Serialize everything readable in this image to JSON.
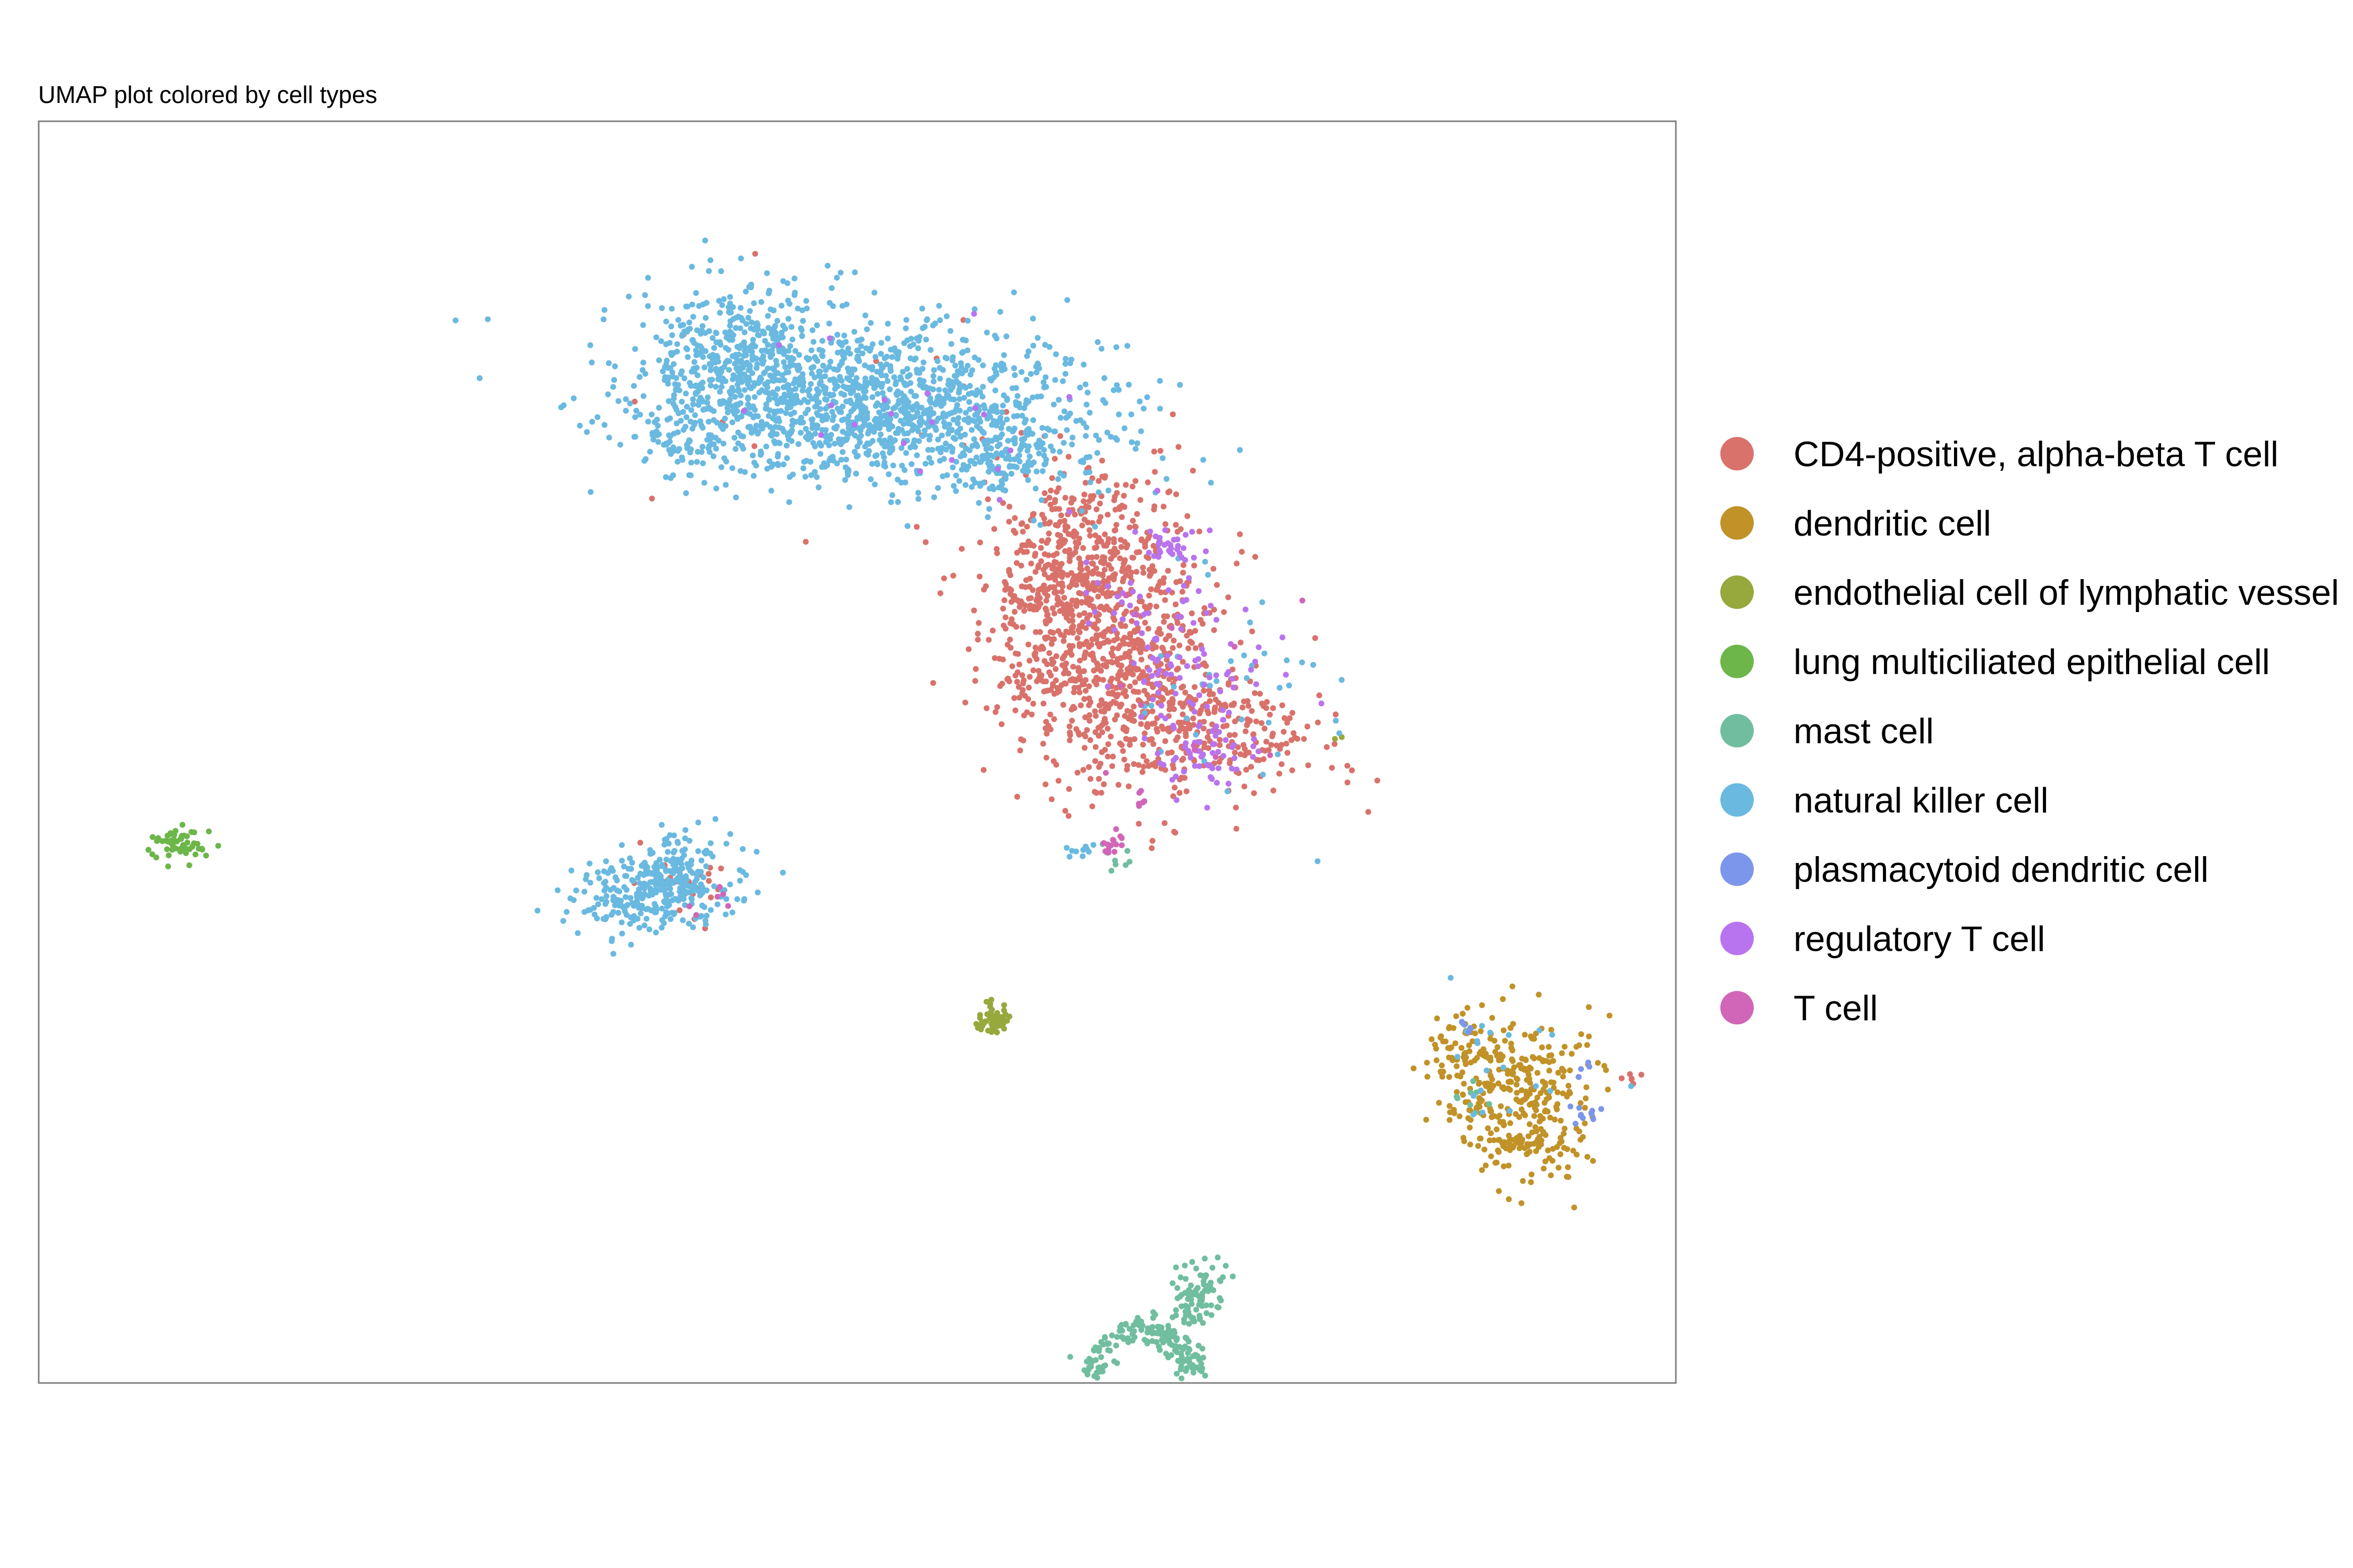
{
  "chart_data": {
    "type": "scatter",
    "title": "UMAP plot colored by cell types",
    "xlabel": "",
    "ylabel": "",
    "grid": false,
    "axes_ticks": false,
    "legend_position": "right",
    "xlim": [
      0,
      1085
    ],
    "ylim": [
      0,
      837
    ],
    "series": [
      {
        "name": "CD4-positive, alpha-beta T cell",
        "color": "#D9726B",
        "clusters": [
          {
            "center": [
              705,
              340
            ],
            "spread": [
              38,
              52
            ],
            "count": 950,
            "angle": -0.35,
            "shape": "gauss"
          },
          {
            "center": [
              690,
              292
            ],
            "spread": [
              22,
              30
            ],
            "count": 180,
            "angle": 0,
            "shape": "gauss"
          },
          {
            "center": [
              770,
              400
            ],
            "spread": [
              40,
              18
            ],
            "count": 260,
            "angle": 0.15,
            "shape": "gauss"
          },
          {
            "center": [
              430,
              508
            ],
            "spread": [
              12,
              10
            ],
            "count": 25,
            "angle": 0,
            "shape": "gauss"
          },
          {
            "center": [
              550,
              190
            ],
            "spread": [
              90,
              40
            ],
            "count": 14,
            "angle": 0,
            "shape": "gauss"
          },
          {
            "center": [
              1057,
              634
            ],
            "spread": [
              5,
              2
            ],
            "count": 6,
            "angle": 0,
            "shape": "gauss"
          }
        ]
      },
      {
        "name": "dendritic cell",
        "color": "#C19228",
        "clusters": [
          {
            "center": [
              958,
              628
            ],
            "spread": [
              20,
              18
            ],
            "count": 160,
            "angle": 0,
            "shape": "gauss"
          },
          {
            "center": [
              990,
              652
            ],
            "spread": [
              22,
              28
            ],
            "count": 200,
            "angle": 0.2,
            "shape": "gauss"
          },
          {
            "center": [
              985,
              680
            ],
            "spread": [
              16,
              7
            ],
            "count": 50,
            "angle": 0,
            "shape": "gauss"
          }
        ]
      },
      {
        "name": "endothelial cell of lymphatic vessel",
        "color": "#97A83D",
        "clusters": [
          {
            "center": [
              633,
              596
            ],
            "spread": [
              6,
              5
            ],
            "count": 55,
            "angle": -0.7,
            "shape": "gauss"
          },
          {
            "center": [
              862,
              408
            ],
            "spread": [
              2,
              1
            ],
            "count": 2,
            "angle": 0,
            "shape": "gauss"
          }
        ]
      },
      {
        "name": "lung multiciliated epithelial cell",
        "color": "#6CB64A",
        "clusters": [
          {
            "center": [
              93,
              481
            ],
            "spread": [
              9,
              6
            ],
            "count": 60,
            "angle": 0,
            "shape": "gauss"
          }
        ]
      },
      {
        "name": "mast cell",
        "color": "#70BE9F",
        "clusters": [
          {
            "center": [
              730,
              832
            ],
            "spread": [
              38,
              32
            ],
            "count": 320,
            "angle": -0.5,
            "shape": "ring"
          },
          {
            "center": [
              690,
              868
            ],
            "spread": [
              34,
              5
            ],
            "count": 140,
            "angle": 0,
            "shape": "gauss"
          },
          {
            "center": [
              768,
              780
            ],
            "spread": [
              8,
              14
            ],
            "count": 90,
            "angle": 0.4,
            "shape": "gauss"
          },
          {
            "center": [
              718,
              491
            ],
            "spread": [
              7,
              5
            ],
            "count": 8,
            "angle": 0,
            "shape": "gauss"
          },
          {
            "center": [
              950,
              650
            ],
            "spread": [
              6,
              10
            ],
            "count": 8,
            "angle": 0,
            "shape": "gauss"
          }
        ]
      },
      {
        "name": "natural killer cell",
        "color": "#6AB9E0",
        "clusters": [
          {
            "center": [
              545,
              185
            ],
            "spread": [
              75,
              28
            ],
            "count": 1400,
            "angle": 0.12,
            "shape": "gauss"
          },
          {
            "center": [
              460,
              160
            ],
            "spread": [
              30,
              30
            ],
            "count": 300,
            "angle": 0,
            "shape": "gauss"
          },
          {
            "center": [
              425,
              215
            ],
            "spread": [
              10,
              10
            ],
            "count": 40,
            "angle": 0,
            "shape": "gauss"
          },
          {
            "center": [
              640,
              215
            ],
            "spread": [
              20,
              14
            ],
            "count": 120,
            "angle": 0,
            "shape": "gauss"
          },
          {
            "center": [
              408,
              512
            ],
            "spread": [
              28,
              12
            ],
            "count": 300,
            "angle": -0.15,
            "shape": "gauss"
          },
          {
            "center": [
              420,
              490
            ],
            "spread": [
              16,
              8
            ],
            "count": 60,
            "angle": -0.5,
            "shape": "gauss"
          },
          {
            "center": [
              690,
              484
            ],
            "spread": [
              6,
              3
            ],
            "count": 10,
            "angle": 0,
            "shape": "gauss"
          },
          {
            "center": [
              790,
              360
            ],
            "spread": [
              40,
              50
            ],
            "count": 40,
            "angle": 0,
            "shape": "gauss"
          },
          {
            "center": [
              960,
              630
            ],
            "spread": [
              30,
              30
            ],
            "count": 20,
            "angle": 0,
            "shape": "gauss"
          }
        ]
      },
      {
        "name": "plasmacytoid dendritic cell",
        "color": "#7B96EA",
        "clusters": [
          {
            "center": [
              1025,
              660
            ],
            "spread": [
              5,
              3
            ],
            "count": 12,
            "angle": 0,
            "shape": "gauss"
          },
          {
            "center": [
              945,
              600
            ],
            "spread": [
              4,
              3
            ],
            "count": 6,
            "angle": 0,
            "shape": "gauss"
          },
          {
            "center": [
              1025,
              630
            ],
            "spread": [
              3,
              3
            ],
            "count": 4,
            "angle": 0,
            "shape": "gauss"
          }
        ]
      },
      {
        "name": "regulatory T cell",
        "color": "#B874EE",
        "clusters": [
          {
            "center": [
              760,
              360
            ],
            "spread": [
              25,
              45
            ],
            "count": 120,
            "angle": -0.3,
            "shape": "gauss"
          },
          {
            "center": [
              745,
              280
            ],
            "spread": [
              10,
              6
            ],
            "count": 30,
            "angle": 0,
            "shape": "gauss"
          },
          {
            "center": [
              780,
              420
            ],
            "spread": [
              20,
              10
            ],
            "count": 40,
            "angle": 0,
            "shape": "gauss"
          },
          {
            "center": [
              560,
              190
            ],
            "spread": [
              70,
              30
            ],
            "count": 20,
            "angle": 0,
            "shape": "gauss"
          }
        ]
      },
      {
        "name": "T cell",
        "color": "#D166B8",
        "clusters": [
          {
            "center": [
              712,
              478
            ],
            "spread": [
              3,
              5
            ],
            "count": 14,
            "angle": 0.5,
            "shape": "gauss"
          },
          {
            "center": [
              730,
              450
            ],
            "spread": [
              2,
              4
            ],
            "count": 6,
            "angle": 0,
            "shape": "gauss"
          },
          {
            "center": [
              440,
              515
            ],
            "spread": [
              10,
              8
            ],
            "count": 6,
            "angle": 0,
            "shape": "gauss"
          },
          {
            "center": [
              760,
              380
            ],
            "spread": [
              30,
              40
            ],
            "count": 12,
            "angle": 0,
            "shape": "gauss"
          }
        ]
      }
    ]
  }
}
